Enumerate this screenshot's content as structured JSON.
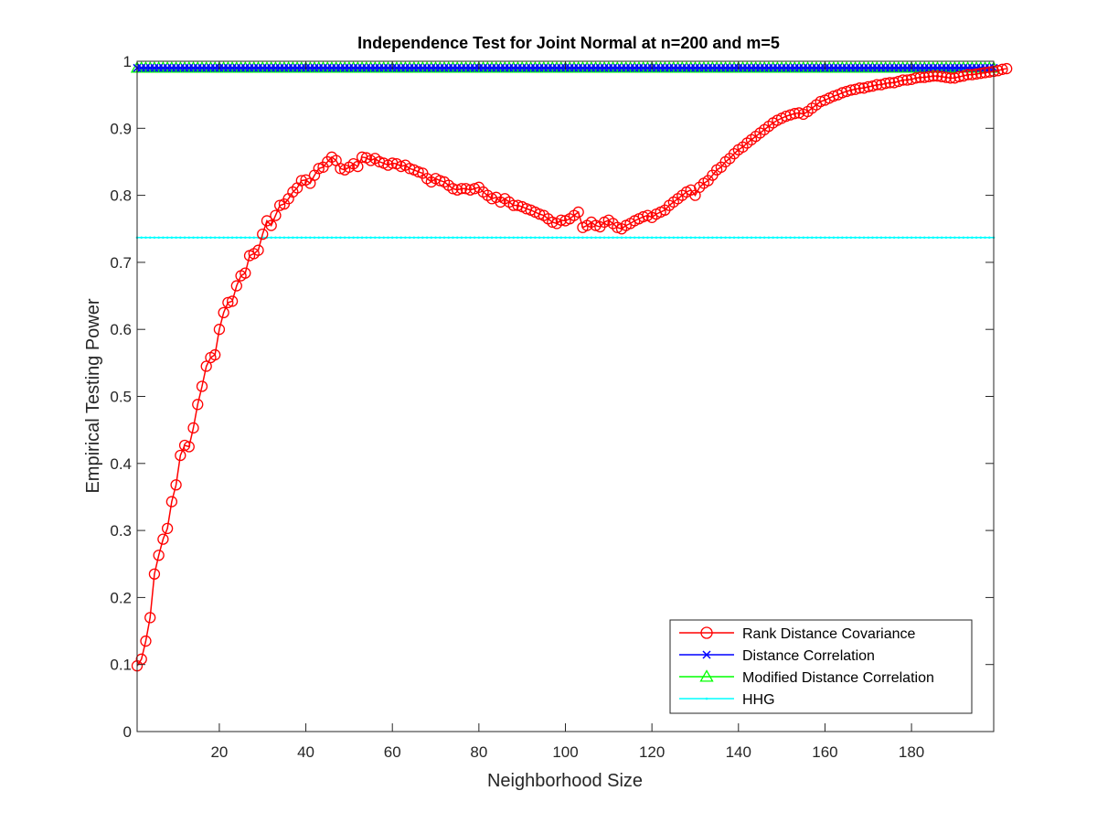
{
  "chart_data": {
    "type": "line",
    "title": "Independence Test for Joint Normal at n=200 and m=5",
    "xlabel": "Neighborhood Size",
    "ylabel": "Empirical Testing Power",
    "xlim": [
      1,
      199
    ],
    "ylim": [
      0,
      1
    ],
    "xticks": [
      "20",
      "40",
      "60",
      "80",
      "100",
      "120",
      "140",
      "160",
      "180"
    ],
    "yticks": [
      "0",
      "0.1",
      "0.2",
      "0.3",
      "0.4",
      "0.5",
      "0.6",
      "0.7",
      "0.8",
      "0.9",
      "1"
    ],
    "grid": false,
    "legend_position": "bottom-right",
    "colors": {
      "rdc": "#ff0000",
      "dcorr": "#0000ff",
      "mdcorr": "#00ff00",
      "hhg": "#00ffff",
      "axes": "#262626"
    },
    "series": [
      {
        "name": "Rank Distance Covariance",
        "marker": "circle",
        "color": "#ff0000",
        "x_start": 1,
        "x_step": 1,
        "values": [
          0.098,
          0.108,
          0.135,
          0.17,
          0.235,
          0.263,
          0.287,
          0.303,
          0.343,
          0.368,
          0.412,
          0.427,
          0.425,
          0.453,
          0.488,
          0.515,
          0.545,
          0.558,
          0.562,
          0.6,
          0.625,
          0.64,
          0.642,
          0.665,
          0.68,
          0.684,
          0.71,
          0.713,
          0.718,
          0.742,
          0.762,
          0.755,
          0.77,
          0.785,
          0.787,
          0.795,
          0.805,
          0.811,
          0.822,
          0.823,
          0.818,
          0.83,
          0.84,
          0.842,
          0.85,
          0.857,
          0.852,
          0.84,
          0.838,
          0.842,
          0.847,
          0.843,
          0.857,
          0.856,
          0.852,
          0.855,
          0.85,
          0.848,
          0.845,
          0.848,
          0.847,
          0.843,
          0.845,
          0.84,
          0.838,
          0.835,
          0.833,
          0.825,
          0.82,
          0.825,
          0.822,
          0.82,
          0.815,
          0.81,
          0.808,
          0.81,
          0.81,
          0.808,
          0.81,
          0.812,
          0.805,
          0.8,
          0.795,
          0.797,
          0.79,
          0.795,
          0.79,
          0.785,
          0.785,
          0.783,
          0.78,
          0.778,
          0.775,
          0.772,
          0.77,
          0.765,
          0.76,
          0.758,
          0.763,
          0.762,
          0.765,
          0.77,
          0.775,
          0.752,
          0.755,
          0.76,
          0.755,
          0.753,
          0.76,
          0.763,
          0.758,
          0.752,
          0.75,
          0.755,
          0.758,
          0.762,
          0.765,
          0.768,
          0.77,
          0.767,
          0.772,
          0.775,
          0.778,
          0.785,
          0.79,
          0.795,
          0.8,
          0.805,
          0.808,
          0.8,
          0.812,
          0.818,
          0.822,
          0.83,
          0.838,
          0.842,
          0.85,
          0.855,
          0.862,
          0.868,
          0.872,
          0.878,
          0.883,
          0.888,
          0.893,
          0.898,
          0.903,
          0.908,
          0.912,
          0.915,
          0.918,
          0.92,
          0.922,
          0.923,
          0.921,
          0.925,
          0.93,
          0.935,
          0.94,
          0.942,
          0.945,
          0.948,
          0.95,
          0.953,
          0.955,
          0.957,
          0.958,
          0.96,
          0.96,
          0.962,
          0.963,
          0.965,
          0.965,
          0.967,
          0.968,
          0.968,
          0.97,
          0.972,
          0.972,
          0.973,
          0.975,
          0.976,
          0.976,
          0.977,
          0.978,
          0.978,
          0.977,
          0.976,
          0.975,
          0.975,
          0.977,
          0.978,
          0.98,
          0.98,
          0.981,
          0.982,
          0.983,
          0.984,
          0.985,
          0.986,
          0.988,
          0.989
        ]
      },
      {
        "name": "Distance Correlation",
        "marker": "x",
        "color": "#0000ff",
        "constant": 0.99
      },
      {
        "name": "Modified Distance Correlation",
        "marker": "triangle",
        "color": "#00ff00",
        "constant": 0.99
      },
      {
        "name": "HHG",
        "marker": "dot",
        "color": "#00ffff",
        "constant": 0.737
      }
    ]
  }
}
